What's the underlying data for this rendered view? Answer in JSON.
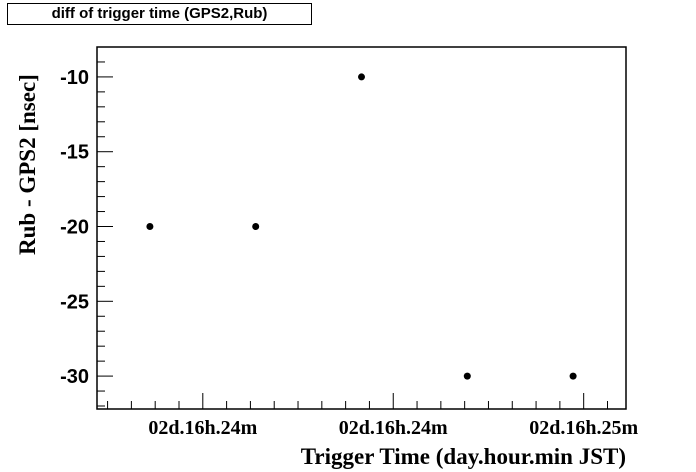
{
  "chart_data": {
    "type": "scatter",
    "title": "diff of trigger time (GPS2,Rub)",
    "xlabel": "Trigger Time (day.hour.min JST)",
    "ylabel": "Rub - GPS2 [nsec]",
    "x": [
      1,
      2,
      3,
      4,
      5
    ],
    "y": [
      -20,
      -20,
      -10,
      -30,
      -30
    ],
    "xlim": [
      0.5,
      5.5
    ],
    "ylim": [
      -32.2,
      -8.0
    ],
    "yticks": [
      -30,
      -25,
      -20,
      -15,
      -10
    ],
    "yticklabels": [
      "-30",
      "-25",
      "-20",
      "-15",
      "-10"
    ],
    "xticks": [
      1.5,
      3.3,
      5.1
    ],
    "xticklabels": [
      "02d.16h.24m",
      "02d.16h.24m",
      "02d.16h.25m"
    ],
    "grid": false,
    "legend": "none",
    "marker_color": "#000000"
  }
}
